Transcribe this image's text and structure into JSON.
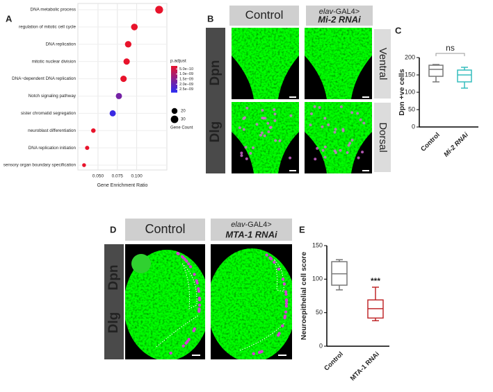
{
  "panel_labels": {
    "a": "A",
    "b": "B",
    "c": "C",
    "d": "D",
    "e": "E"
  },
  "chart_data": [
    {
      "type": "dot",
      "xlabel": "Gene Enrichment Ratio",
      "categories": [
        "DNA metabolic process",
        "regulation of mitotic cell cycle",
        "DNA replication",
        "mitotic nuclear division",
        "DNA−dependent DNA replication",
        "Notch signaling pathway",
        "sister chromatid segregation",
        "neuroblast differentiation",
        "DNA replication initiation",
        "sensory organ boundary specification"
      ],
      "values": [
        0.129,
        0.097,
        0.089,
        0.087,
        0.083,
        0.077,
        0.069,
        0.044,
        0.036,
        0.032
      ],
      "sizes": [
        32,
        25,
        24,
        23,
        23,
        22,
        22,
        12,
        10,
        8
      ],
      "color_values": [
        1e-12,
        1e-12,
        1e-12,
        1e-11,
        1e-11,
        1.8e-09,
        2.6e-09,
        1e-10,
        1e-10,
        2e-10
      ],
      "xlim": [
        0.024,
        0.139
      ],
      "xticks": [
        {
          "value": 0.05,
          "label": "0.050"
        },
        {
          "value": 0.075,
          "label": "0.075"
        },
        {
          "value": 0.1,
          "label": "0.100"
        }
      ],
      "grid": true,
      "color_legend": {
        "title": "p.adjust",
        "colors": [
          "#e8132b",
          "#2b2bf2"
        ],
        "clim": [
          2e-10,
          2.8e-09
        ],
        "ticks": [
          {
            "value": 5e-10,
            "label": "5.0e−10"
          },
          {
            "value": 1e-09,
            "label": "1.0e−09"
          },
          {
            "value": 1.5e-09,
            "label": "1.5e−09"
          },
          {
            "value": 2e-09,
            "label": "2.0e−09"
          },
          {
            "value": 2.5e-09,
            "label": "2.5e−09"
          }
        ]
      },
      "size_legend": {
        "title": "Gene Count",
        "sizes": [
          20,
          30
        ]
      }
    },
    {
      "type": "box",
      "ylabel": "Dpn +ve cells",
      "annotation": "ns",
      "categories": [
        "Control",
        "Mi-2 RNAi"
      ],
      "colors": [
        "#777777",
        "#35bdbd"
      ],
      "boxes": [
        {
          "min": 130,
          "q1": 146,
          "median": 166,
          "q3": 178,
          "max": 180
        },
        {
          "min": 112,
          "q1": 130,
          "median": 150,
          "q3": 164,
          "max": 172
        }
      ],
      "ylim": [
        0,
        200
      ],
      "yticks": [
        0,
        50,
        100,
        150,
        200
      ]
    },
    {
      "type": "box",
      "ylabel": "Neuroepithelial cell score",
      "annotation": "***",
      "categories": [
        "Control",
        "MTA-1 RNAi"
      ],
      "colors": [
        "#777777",
        "#c0282b"
      ],
      "boxes": [
        {
          "min": 84,
          "q1": 91,
          "median": 108,
          "q3": 126,
          "max": 129
        },
        {
          "min": 38,
          "q1": 42,
          "median": 56,
          "q3": 69,
          "max": 88
        }
      ],
      "ylim": [
        0,
        150
      ],
      "yticks": [
        0,
        50,
        100,
        150
      ]
    }
  ],
  "panel_b": {
    "control": "Control",
    "driver": "elav",
    "construct": "-GAL4>",
    "rnai": "Mi-2 RNAi",
    "rows": [
      "Ventral",
      "Dorsal"
    ],
    "stains": [
      "Dpn",
      "Dlg"
    ]
  },
  "panel_d": {
    "control": "Control",
    "driver": "elav",
    "construct": "-GAL4>",
    "rnai": "MTA-1 RNAi",
    "stains": [
      "Dpn",
      "Dlg"
    ]
  }
}
